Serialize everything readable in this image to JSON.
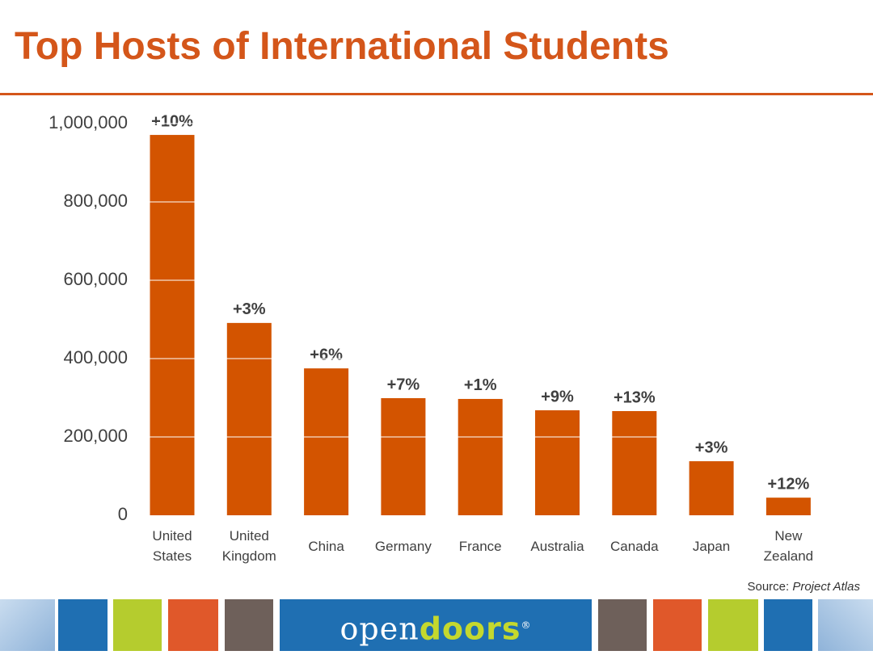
{
  "chart_data": {
    "type": "bar",
    "title": "Top Hosts of International Students",
    "categories": [
      "United States",
      "United Kingdom",
      "China",
      "Germany",
      "France",
      "Australia",
      "Canada",
      "Japan",
      "New Zealand"
    ],
    "values": [
      971000,
      491000,
      375000,
      299000,
      297000,
      268000,
      266000,
      138000,
      45000
    ],
    "growth_labels": [
      "+10%",
      "+3%",
      "+6%",
      "+7%",
      "+1%",
      "+9%",
      "+13%",
      "+3%",
      "+12%"
    ],
    "color": "#d35400",
    "ylim": [
      0,
      1000000
    ],
    "yticks": [
      0,
      {
        "value": 200000,
        "label": "200,000"
      },
      {
        "value": 400000,
        "label": "400,000"
      },
      {
        "value": 600000,
        "label": "600,000"
      },
      {
        "value": 800000,
        "label": "800,000"
      },
      {
        "value": 1000000,
        "label": "1,000,000"
      }
    ],
    "grid": true,
    "grid_color": "#ffffff",
    "source_label": "Source:",
    "source_name": "Project Atlas"
  },
  "footer": {
    "logo_open": "open",
    "logo_doors": "doors",
    "logo_mark": "®"
  }
}
